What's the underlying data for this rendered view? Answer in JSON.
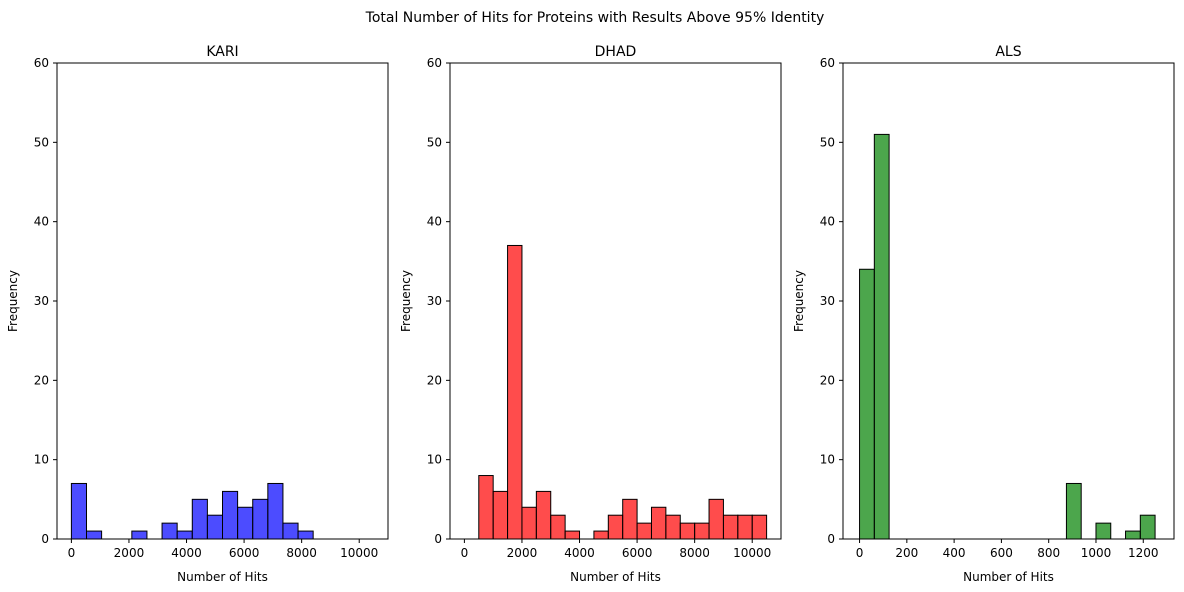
{
  "figure": {
    "suptitle": "Total Number of Hits for Proteins with Results Above 95% Identity"
  },
  "chart_data": [
    {
      "type": "bar",
      "title": "KARI",
      "xlabel": "Number of Hits",
      "ylabel": "Frequency",
      "color": "#0000ff",
      "edge_color": "#000000",
      "xlim": [
        -500,
        11000
      ],
      "ylim": [
        0,
        60
      ],
      "xticks": [
        0,
        2000,
        4000,
        6000,
        8000,
        10000
      ],
      "yticks": [
        0,
        10,
        20,
        30,
        40,
        50,
        60
      ],
      "bin_width": 525,
      "bins": [
        {
          "x": 0,
          "value": 7
        },
        {
          "x": 525,
          "value": 1
        },
        {
          "x": 1050,
          "value": 0
        },
        {
          "x": 1575,
          "value": 0
        },
        {
          "x": 2100,
          "value": 1
        },
        {
          "x": 2625,
          "value": 0
        },
        {
          "x": 3150,
          "value": 2
        },
        {
          "x": 3675,
          "value": 1
        },
        {
          "x": 4200,
          "value": 5
        },
        {
          "x": 4725,
          "value": 3
        },
        {
          "x": 5250,
          "value": 6
        },
        {
          "x": 5775,
          "value": 4
        },
        {
          "x": 6300,
          "value": 5
        },
        {
          "x": 6825,
          "value": 7
        },
        {
          "x": 7350,
          "value": 2
        },
        {
          "x": 7875,
          "value": 1
        },
        {
          "x": 8400,
          "value": 0
        },
        {
          "x": 8925,
          "value": 0
        },
        {
          "x": 9450,
          "value": 0
        },
        {
          "x": 9975,
          "value": 0
        }
      ]
    },
    {
      "type": "bar",
      "title": "DHAD",
      "xlabel": "Number of Hits",
      "ylabel": "Frequency",
      "color": "#ff0000",
      "edge_color": "#000000",
      "xlim": [
        -500,
        11000
      ],
      "ylim": [
        0,
        60
      ],
      "xticks": [
        0,
        2000,
        4000,
        6000,
        8000,
        10000
      ],
      "yticks": [
        0,
        10,
        20,
        30,
        40,
        50,
        60
      ],
      "bin_width": 500,
      "bins": [
        {
          "x": 500,
          "value": 8
        },
        {
          "x": 1000,
          "value": 6
        },
        {
          "x": 1500,
          "value": 37
        },
        {
          "x": 2000,
          "value": 4
        },
        {
          "x": 2500,
          "value": 6
        },
        {
          "x": 3000,
          "value": 3
        },
        {
          "x": 3500,
          "value": 1
        },
        {
          "x": 4000,
          "value": 0
        },
        {
          "x": 4500,
          "value": 1
        },
        {
          "x": 5000,
          "value": 3
        },
        {
          "x": 5500,
          "value": 5
        },
        {
          "x": 6000,
          "value": 2
        },
        {
          "x": 6500,
          "value": 4
        },
        {
          "x": 7000,
          "value": 3
        },
        {
          "x": 7500,
          "value": 2
        },
        {
          "x": 8000,
          "value": 2
        },
        {
          "x": 8500,
          "value": 5
        },
        {
          "x": 9000,
          "value": 3
        },
        {
          "x": 9500,
          "value": 3
        },
        {
          "x": 10000,
          "value": 3
        }
      ]
    },
    {
      "type": "bar",
      "title": "ALS",
      "xlabel": "Number of Hits",
      "ylabel": "Frequency",
      "color": "#008000",
      "edge_color": "#000000",
      "xlim": [
        -70,
        1330
      ],
      "ylim": [
        0,
        60
      ],
      "xticks": [
        0,
        200,
        400,
        600,
        800,
        1000,
        1200
      ],
      "yticks": [
        0,
        10,
        20,
        30,
        40,
        50,
        60
      ],
      "bin_width": 62.5,
      "bins": [
        {
          "x": 0,
          "value": 34
        },
        {
          "x": 62.5,
          "value": 51
        },
        {
          "x": 125,
          "value": 0
        },
        {
          "x": 187.5,
          "value": 0
        },
        {
          "x": 250,
          "value": 0
        },
        {
          "x": 312.5,
          "value": 0
        },
        {
          "x": 375,
          "value": 0
        },
        {
          "x": 437.5,
          "value": 0
        },
        {
          "x": 500,
          "value": 0
        },
        {
          "x": 562.5,
          "value": 0
        },
        {
          "x": 625,
          "value": 0
        },
        {
          "x": 687.5,
          "value": 0
        },
        {
          "x": 750,
          "value": 0
        },
        {
          "x": 812.5,
          "value": 0
        },
        {
          "x": 875,
          "value": 7
        },
        {
          "x": 937.5,
          "value": 0
        },
        {
          "x": 1000,
          "value": 2
        },
        {
          "x": 1062.5,
          "value": 0
        },
        {
          "x": 1125,
          "value": 1
        },
        {
          "x": 1187.5,
          "value": 3
        }
      ]
    }
  ]
}
